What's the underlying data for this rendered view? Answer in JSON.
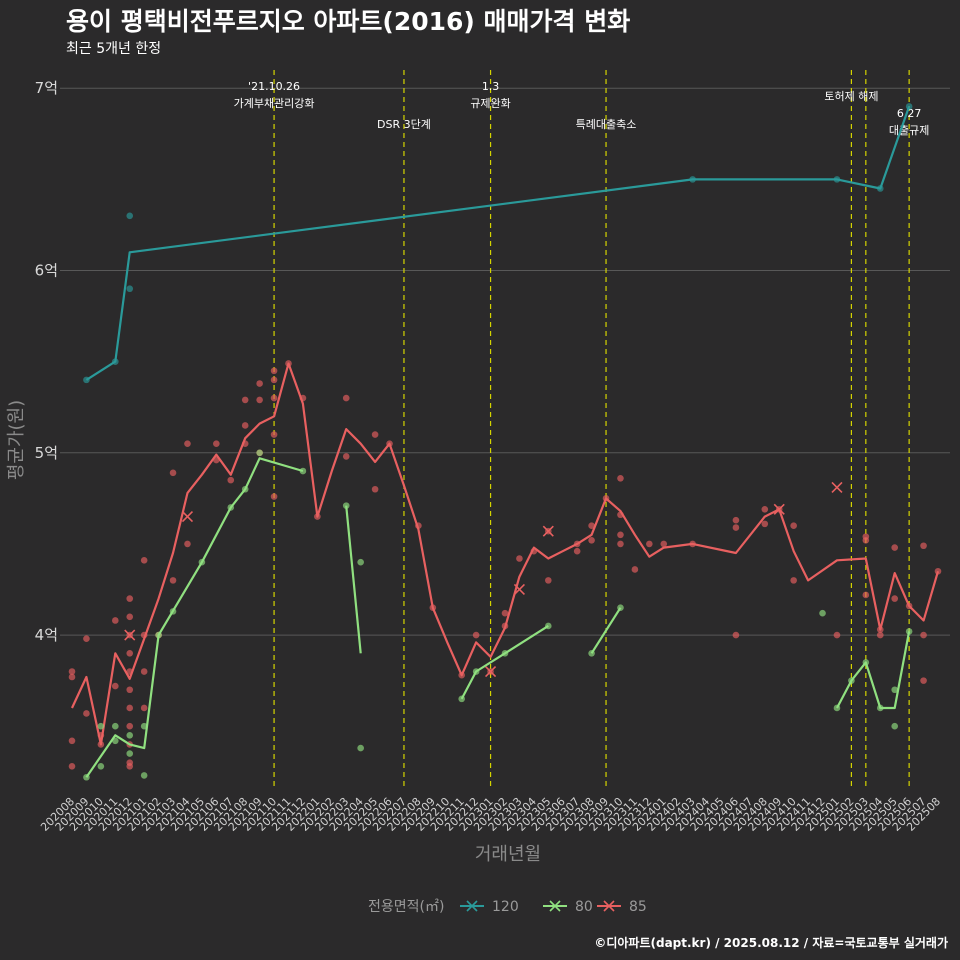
{
  "colors": {
    "s120": "#2a9a9a",
    "s80": "#90e080",
    "s85": "#e86060",
    "event": "#d4d400",
    "grid": "#585858",
    "bg": "#2b2a2b"
  },
  "chart_data": {
    "type": "line",
    "title": "용이 평택비전푸르지오 아파트(2016) 매매가격 변화",
    "subtitle": "최근 5개년 한정",
    "xlabel": "거래년월",
    "ylabel": "평균가(원)",
    "caption": "©디아파트(dapt.kr) / 2025.08.12 / 자료=국토교통부 실거래가",
    "ylim": [
      315000000,
      710000000
    ],
    "ytick_values": [
      400000000,
      500000000,
      600000000,
      700000000
    ],
    "ytick_labels": [
      "4억",
      "5억",
      "6억",
      "7억"
    ],
    "x_labels": [
      "202008",
      "202009",
      "202010",
      "202011",
      "202012",
      "202101",
      "202102",
      "202103",
      "202104",
      "202105",
      "202106",
      "202107",
      "202108",
      "202109",
      "202110",
      "202111",
      "202112",
      "202201",
      "202202",
      "202203",
      "202204",
      "202205",
      "202206",
      "202207",
      "202208",
      "202209",
      "202210",
      "202211",
      "202212",
      "202301",
      "202302",
      "202303",
      "202304",
      "202305",
      "202306",
      "202307",
      "202308",
      "202309",
      "202310",
      "202311",
      "202312",
      "202401",
      "202402",
      "202403",
      "202404",
      "202405",
      "202406",
      "202407",
      "202408",
      "202409",
      "202410",
      "202411",
      "202412",
      "202501",
      "202502",
      "202503",
      "202504",
      "202505",
      "202506",
      "202507",
      "202508"
    ],
    "legend": {
      "title": "전용면적(㎡)",
      "items": [
        "120",
        "80",
        "85"
      ]
    },
    "events": [
      {
        "x": "202110",
        "lines": [
          "'21.10.26",
          "가계부채관리강화"
        ],
        "level": "high"
      },
      {
        "x": "202207",
        "lines": [
          "DSR 3단계"
        ],
        "level": "low"
      },
      {
        "x": "202301",
        "lines": [
          "1.3",
          "규제완화"
        ],
        "level": "high"
      },
      {
        "x": "202309",
        "lines": [
          "특례대출축소"
        ],
        "level": "low"
      },
      {
        "x": "202502",
        "lines": [
          "토허제 해제"
        ],
        "level": "high"
      },
      {
        "x": "202503",
        "lines": [],
        "level": "none"
      },
      {
        "x": "202506",
        "lines": [
          "6.27",
          "대출규제"
        ],
        "level": "low"
      }
    ],
    "series": [
      {
        "name": "120",
        "color_key": "s120",
        "line": [
          [
            "202009",
            540000000
          ],
          [
            "202011",
            550000000
          ],
          [
            "202012",
            610000000
          ],
          [
            "202403",
            650000000
          ],
          [
            "202501",
            650000000
          ],
          [
            "202504",
            645000000
          ],
          [
            "202506",
            690000000
          ]
        ],
        "points": [
          [
            "202009",
            540000000
          ],
          [
            "202011",
            550000000
          ],
          [
            "202012",
            630000000
          ],
          [
            "202012",
            590000000
          ],
          [
            "202403",
            650000000
          ],
          [
            "202501",
            650000000
          ],
          [
            "202504",
            645000000
          ],
          [
            "202506",
            690000000
          ]
        ],
        "crosses": []
      },
      {
        "name": "80",
        "color_key": "s80",
        "line": [
          [
            "202009",
            322000000
          ],
          [
            "202011",
            345000000
          ],
          [
            "202012",
            340000000
          ],
          [
            "202101",
            338000000
          ],
          [
            "202102",
            400000000
          ],
          [
            "202105",
            440000000
          ],
          [
            "202107",
            470000000
          ],
          [
            "202108",
            480000000
          ],
          [
            "202109",
            497000000
          ],
          [
            "202112",
            490000000
          ]
        ],
        "line2": [
          [
            "202203",
            471000000
          ],
          [
            "202204",
            390000000
          ]
        ],
        "line3": [
          [
            "202211",
            365000000
          ],
          [
            "202212",
            380000000
          ],
          [
            "202302",
            390000000
          ],
          [
            "202305",
            405000000
          ]
        ],
        "line4": [
          [
            "202308",
            390000000
          ],
          [
            "202310",
            415000000
          ]
        ],
        "line5": [
          [
            "202501",
            360000000
          ],
          [
            "202502",
            375000000
          ],
          [
            "202503",
            385000000
          ],
          [
            "202504",
            360000000
          ],
          [
            "202505",
            360000000
          ],
          [
            "202506",
            402000000
          ]
        ],
        "points": [
          [
            "202009",
            322000000
          ],
          [
            "202010",
            328000000
          ],
          [
            "202010",
            350000000
          ],
          [
            "202011",
            342000000
          ],
          [
            "202011",
            350000000
          ],
          [
            "202012",
            335000000
          ],
          [
            "202012",
            345000000
          ],
          [
            "202101",
            323000000
          ],
          [
            "202101",
            350000000
          ],
          [
            "202102",
            400000000
          ],
          [
            "202103",
            413000000
          ],
          [
            "202105",
            440000000
          ],
          [
            "202107",
            470000000
          ],
          [
            "202108",
            480000000
          ],
          [
            "202109",
            500000000
          ],
          [
            "202112",
            490000000
          ],
          [
            "202203",
            471000000
          ],
          [
            "202204",
            440000000
          ],
          [
            "202204",
            338000000
          ],
          [
            "202211",
            365000000
          ],
          [
            "202212",
            380000000
          ],
          [
            "202302",
            390000000
          ],
          [
            "202305",
            405000000
          ],
          [
            "202308",
            390000000
          ],
          [
            "202310",
            415000000
          ],
          [
            "202412",
            412000000
          ],
          [
            "202501",
            360000000
          ],
          [
            "202502",
            375000000
          ],
          [
            "202503",
            385000000
          ],
          [
            "202504",
            360000000
          ],
          [
            "202505",
            350000000
          ],
          [
            "202505",
            370000000
          ],
          [
            "202506",
            402000000
          ]
        ],
        "crosses": []
      },
      {
        "name": "85",
        "color_key": "s85",
        "line": [
          [
            "202008",
            360000000
          ],
          [
            "202009",
            377000000
          ],
          [
            "202010",
            340000000
          ],
          [
            "202011",
            390000000
          ],
          [
            "202012",
            376000000
          ],
          [
            "202101",
            398000000
          ],
          [
            "202102",
            420000000
          ],
          [
            "202103",
            445000000
          ],
          [
            "202104",
            478000000
          ],
          [
            "202105",
            488000000
          ],
          [
            "202106",
            499000000
          ],
          [
            "202107",
            488000000
          ],
          [
            "202108",
            508000000
          ],
          [
            "202109",
            516000000
          ],
          [
            "202110",
            520000000
          ],
          [
            "202111",
            549000000
          ],
          [
            "202112",
            527000000
          ],
          [
            "202201",
            465000000
          ],
          [
            "202202",
            490000000
          ],
          [
            "202203",
            513000000
          ],
          [
            "202204",
            505000000
          ],
          [
            "202205",
            495000000
          ],
          [
            "202206",
            505000000
          ],
          [
            "202207",
            482000000
          ],
          [
            "202208",
            458000000
          ],
          [
            "202209",
            415000000
          ],
          [
            "202210",
            396000000
          ],
          [
            "202211",
            378000000
          ],
          [
            "202212",
            396000000
          ],
          [
            "202301",
            388000000
          ],
          [
            "202302",
            404000000
          ],
          [
            "202303",
            432000000
          ],
          [
            "202304",
            448000000
          ],
          [
            "202305",
            442000000
          ],
          [
            "202306",
            446000000
          ],
          [
            "202307",
            450000000
          ],
          [
            "202308",
            455000000
          ],
          [
            "202309",
            475000000
          ],
          [
            "202310",
            468000000
          ],
          [
            "202311",
            455000000
          ],
          [
            "202312",
            443000000
          ],
          [
            "202401",
            448000000
          ],
          [
            "202403",
            450000000
          ],
          [
            "202406",
            445000000
          ],
          [
            "202408",
            465000000
          ],
          [
            "202409",
            469000000
          ],
          [
            "202410",
            446000000
          ],
          [
            "202411",
            430000000
          ],
          [
            "202501",
            441000000
          ],
          [
            "202503",
            442000000
          ],
          [
            "202504",
            403000000
          ],
          [
            "202505",
            434000000
          ],
          [
            "202506",
            416000000
          ],
          [
            "202507",
            408000000
          ],
          [
            "202508",
            435000000
          ]
        ],
        "points": [
          [
            "202008",
            380000000
          ],
          [
            "202008",
            377000000
          ],
          [
            "202008",
            342000000
          ],
          [
            "202008",
            328000000
          ],
          [
            "202009",
            398000000
          ],
          [
            "202009",
            357000000
          ],
          [
            "202010",
            340000000
          ],
          [
            "202010",
            345000000
          ],
          [
            "202011",
            372000000
          ],
          [
            "202011",
            408000000
          ],
          [
            "202012",
            420000000
          ],
          [
            "202012",
            410000000
          ],
          [
            "202012",
            400000000
          ],
          [
            "202012",
            390000000
          ],
          [
            "202012",
            380000000
          ],
          [
            "202012",
            370000000
          ],
          [
            "202012",
            360000000
          ],
          [
            "202012",
            350000000
          ],
          [
            "202012",
            340000000
          ],
          [
            "202012",
            330000000
          ],
          [
            "202012",
            328000000
          ],
          [
            "202101",
            441000000
          ],
          [
            "202101",
            400000000
          ],
          [
            "202101",
            380000000
          ],
          [
            "202101",
            360000000
          ],
          [
            "202102",
            400000000
          ],
          [
            "202103",
            430000000
          ],
          [
            "202103",
            489000000
          ],
          [
            "202104",
            505000000
          ],
          [
            "202104",
            450000000
          ],
          [
            "202106",
            496000000
          ],
          [
            "202106",
            505000000
          ],
          [
            "202107",
            485000000
          ],
          [
            "202108",
            529000000
          ],
          [
            "202108",
            515000000
          ],
          [
            "202108",
            505000000
          ],
          [
            "202109",
            538000000
          ],
          [
            "202109",
            529000000
          ],
          [
            "202109",
            500000000
          ],
          [
            "202110",
            545000000
          ],
          [
            "202110",
            540000000
          ],
          [
            "202110",
            530000000
          ],
          [
            "202110",
            510000000
          ],
          [
            "202110",
            476000000
          ],
          [
            "202111",
            549000000
          ],
          [
            "202112",
            530000000
          ],
          [
            "202201",
            465000000
          ],
          [
            "202203",
            530000000
          ],
          [
            "202203",
            498000000
          ],
          [
            "202205",
            510000000
          ],
          [
            "202205",
            480000000
          ],
          [
            "202206",
            505000000
          ],
          [
            "202208",
            460000000
          ],
          [
            "202209",
            415000000
          ],
          [
            "202211",
            378000000
          ],
          [
            "202212",
            400000000
          ],
          [
            "202301",
            380000000
          ],
          [
            "202302",
            412000000
          ],
          [
            "202302",
            405000000
          ],
          [
            "202303",
            442000000
          ],
          [
            "202304",
            446000000
          ],
          [
            "202305",
            430000000
          ],
          [
            "202305",
            457000000
          ],
          [
            "202307",
            450000000
          ],
          [
            "202307",
            446000000
          ],
          [
            "202308",
            460000000
          ],
          [
            "202308",
            452000000
          ],
          [
            "202309",
            475000000
          ],
          [
            "202310",
            486000000
          ],
          [
            "202310",
            466000000
          ],
          [
            "202310",
            455000000
          ],
          [
            "202310",
            450000000
          ],
          [
            "202311",
            436000000
          ],
          [
            "202312",
            450000000
          ],
          [
            "202401",
            450000000
          ],
          [
            "202403",
            450000000
          ],
          [
            "202406",
            463000000
          ],
          [
            "202406",
            459000000
          ],
          [
            "202406",
            400000000
          ],
          [
            "202408",
            461000000
          ],
          [
            "202408",
            469000000
          ],
          [
            "202409",
            469000000
          ],
          [
            "202410",
            460000000
          ],
          [
            "202410",
            430000000
          ],
          [
            "202501",
            400000000
          ],
          [
            "202503",
            452000000
          ],
          [
            "202503",
            454000000
          ],
          [
            "202503",
            422000000
          ],
          [
            "202504",
            400000000
          ],
          [
            "202504",
            403000000
          ],
          [
            "202505",
            448000000
          ],
          [
            "202505",
            420000000
          ],
          [
            "202506",
            416000000
          ],
          [
            "202507",
            449000000
          ],
          [
            "202507",
            400000000
          ],
          [
            "202507",
            375000000
          ],
          [
            "202508",
            435000000
          ]
        ],
        "crosses": [
          [
            "202012",
            400000000
          ],
          [
            "202104",
            465000000
          ],
          [
            "202301",
            380000000
          ],
          [
            "202303",
            425000000
          ],
          [
            "202305",
            457000000
          ],
          [
            "202409",
            469000000
          ],
          [
            "202501",
            481000000
          ]
        ]
      }
    ]
  }
}
